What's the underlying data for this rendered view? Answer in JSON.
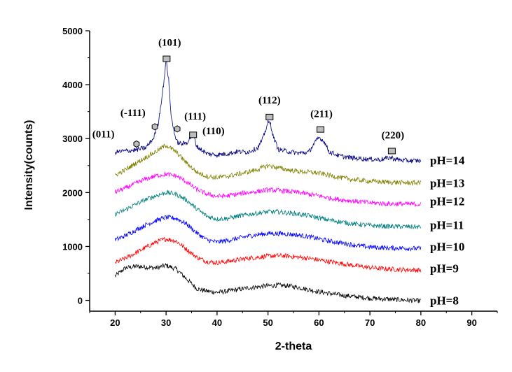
{
  "chart_data": {
    "type": "line",
    "xlabel": "2-theta",
    "ylabel": "Intensity(counts)",
    "xlim": [
      15,
      95
    ],
    "ylim": [
      -200,
      5000
    ],
    "x_ticks": [
      "20",
      "30",
      "40",
      "50",
      "60",
      "70",
      "80",
      "90"
    ],
    "y_ticks": [
      "0",
      "1000",
      "2000",
      "3000",
      "4000",
      "5000"
    ],
    "x_tick_values": [
      20,
      30,
      40,
      50,
      60,
      70,
      80,
      90
    ],
    "y_tick_values": [
      0,
      1000,
      2000,
      3000,
      4000,
      5000
    ],
    "x_range": [
      20,
      80
    ],
    "series": [
      {
        "name": "pH=8",
        "color": "#000000",
        "label_y": 0,
        "points": [
          [
            20,
            450
          ],
          [
            22,
            600
          ],
          [
            24,
            630
          ],
          [
            26,
            620
          ],
          [
            28,
            600
          ],
          [
            30,
            650
          ],
          [
            32,
            580
          ],
          [
            34,
            400
          ],
          [
            36,
            220
          ],
          [
            38,
            170
          ],
          [
            40,
            150
          ],
          [
            42,
            170
          ],
          [
            44,
            200
          ],
          [
            46,
            230
          ],
          [
            48,
            250
          ],
          [
            50,
            270
          ],
          [
            52,
            280
          ],
          [
            54,
            270
          ],
          [
            56,
            240
          ],
          [
            58,
            200
          ],
          [
            60,
            160
          ],
          [
            62,
            130
          ],
          [
            64,
            100
          ],
          [
            66,
            80
          ],
          [
            68,
            60
          ],
          [
            70,
            40
          ],
          [
            72,
            30
          ],
          [
            74,
            20
          ],
          [
            76,
            10
          ],
          [
            78,
            0
          ],
          [
            80,
            -10
          ]
        ]
      },
      {
        "name": "pH=9",
        "color": "#ff0000",
        "label_y": 600,
        "points": [
          [
            20,
            700
          ],
          [
            22,
            780
          ],
          [
            24,
            880
          ],
          [
            26,
            980
          ],
          [
            28,
            1080
          ],
          [
            30,
            1140
          ],
          [
            32,
            1100
          ],
          [
            34,
            950
          ],
          [
            36,
            800
          ],
          [
            38,
            720
          ],
          [
            40,
            700
          ],
          [
            42,
            720
          ],
          [
            44,
            750
          ],
          [
            46,
            780
          ],
          [
            48,
            800
          ],
          [
            50,
            820
          ],
          [
            52,
            830
          ],
          [
            54,
            820
          ],
          [
            56,
            800
          ],
          [
            58,
            780
          ],
          [
            60,
            750
          ],
          [
            62,
            720
          ],
          [
            64,
            690
          ],
          [
            66,
            660
          ],
          [
            68,
            630
          ],
          [
            70,
            610
          ],
          [
            72,
            590
          ],
          [
            74,
            580
          ],
          [
            76,
            570
          ],
          [
            78,
            565
          ],
          [
            80,
            560
          ]
        ]
      },
      {
        "name": "pH=10",
        "color": "#0000ff",
        "label_y": 1000,
        "points": [
          [
            20,
            1120
          ],
          [
            22,
            1200
          ],
          [
            24,
            1300
          ],
          [
            26,
            1400
          ],
          [
            28,
            1480
          ],
          [
            30,
            1540
          ],
          [
            32,
            1520
          ],
          [
            34,
            1420
          ],
          [
            36,
            1250
          ],
          [
            38,
            1120
          ],
          [
            40,
            1080
          ],
          [
            42,
            1110
          ],
          [
            44,
            1150
          ],
          [
            46,
            1190
          ],
          [
            48,
            1220
          ],
          [
            50,
            1240
          ],
          [
            52,
            1240
          ],
          [
            54,
            1230
          ],
          [
            56,
            1210
          ],
          [
            58,
            1180
          ],
          [
            60,
            1140
          ],
          [
            62,
            1100
          ],
          [
            64,
            1070
          ],
          [
            66,
            1040
          ],
          [
            68,
            1010
          ],
          [
            70,
            990
          ],
          [
            72,
            980
          ],
          [
            74,
            970
          ],
          [
            76,
            970
          ],
          [
            78,
            965
          ],
          [
            80,
            960
          ]
        ]
      },
      {
        "name": "pH=11",
        "color": "#008080",
        "label_y": 1400,
        "points": [
          [
            20,
            1600
          ],
          [
            22,
            1680
          ],
          [
            24,
            1780
          ],
          [
            26,
            1870
          ],
          [
            28,
            1940
          ],
          [
            30,
            2000
          ],
          [
            32,
            1970
          ],
          [
            34,
            1860
          ],
          [
            36,
            1700
          ],
          [
            38,
            1560
          ],
          [
            40,
            1510
          ],
          [
            42,
            1520
          ],
          [
            44,
            1560
          ],
          [
            46,
            1590
          ],
          [
            48,
            1620
          ],
          [
            50,
            1640
          ],
          [
            52,
            1640
          ],
          [
            54,
            1620
          ],
          [
            56,
            1600
          ],
          [
            58,
            1570
          ],
          [
            60,
            1530
          ],
          [
            62,
            1490
          ],
          [
            64,
            1460
          ],
          [
            66,
            1430
          ],
          [
            68,
            1410
          ],
          [
            70,
            1390
          ],
          [
            72,
            1380
          ],
          [
            74,
            1370
          ],
          [
            76,
            1370
          ],
          [
            78,
            1365
          ],
          [
            80,
            1360
          ]
        ]
      },
      {
        "name": "pH=12",
        "color": "#ff00ff",
        "label_y": 1840,
        "points": [
          [
            20,
            2010
          ],
          [
            22,
            2080
          ],
          [
            24,
            2170
          ],
          [
            26,
            2250
          ],
          [
            28,
            2310
          ],
          [
            30,
            2340
          ],
          [
            32,
            2310
          ],
          [
            34,
            2200
          ],
          [
            36,
            2060
          ],
          [
            38,
            1970
          ],
          [
            40,
            1930
          ],
          [
            42,
            1940
          ],
          [
            44,
            1970
          ],
          [
            46,
            2000
          ],
          [
            48,
            2020
          ],
          [
            50,
            2050
          ],
          [
            52,
            2040
          ],
          [
            54,
            2020
          ],
          [
            56,
            2000
          ],
          [
            58,
            1970
          ],
          [
            60,
            1940
          ],
          [
            62,
            1900
          ],
          [
            64,
            1870
          ],
          [
            66,
            1850
          ],
          [
            68,
            1830
          ],
          [
            70,
            1810
          ],
          [
            72,
            1800
          ],
          [
            74,
            1790
          ],
          [
            76,
            1790
          ],
          [
            78,
            1785
          ],
          [
            80,
            1780
          ]
        ]
      },
      {
        "name": "pH=13",
        "color": "#808000",
        "label_y": 2180,
        "points": [
          [
            20,
            2320
          ],
          [
            22,
            2420
          ],
          [
            24,
            2540
          ],
          [
            26,
            2650
          ],
          [
            28,
            2760
          ],
          [
            30,
            2880
          ],
          [
            32,
            2750
          ],
          [
            34,
            2550
          ],
          [
            36,
            2380
          ],
          [
            38,
            2300
          ],
          [
            40,
            2280
          ],
          [
            42,
            2300
          ],
          [
            44,
            2340
          ],
          [
            46,
            2380
          ],
          [
            48,
            2430
          ],
          [
            50,
            2500
          ],
          [
            52,
            2460
          ],
          [
            54,
            2420
          ],
          [
            56,
            2390
          ],
          [
            58,
            2380
          ],
          [
            60,
            2360
          ],
          [
            62,
            2320
          ],
          [
            64,
            2280
          ],
          [
            66,
            2250
          ],
          [
            68,
            2230
          ],
          [
            70,
            2210
          ],
          [
            72,
            2200
          ],
          [
            74,
            2190
          ],
          [
            76,
            2185
          ],
          [
            78,
            2180
          ],
          [
            80,
            2180
          ]
        ]
      },
      {
        "name": "pH=14",
        "color": "#000080",
        "label_y": 2600,
        "points": [
          [
            20,
            2750
          ],
          [
            22,
            2770
          ],
          [
            24,
            2790
          ],
          [
            26,
            2830
          ],
          [
            27.5,
            3000
          ],
          [
            28.5,
            3300
          ],
          [
            29.5,
            4000
          ],
          [
            30,
            4450
          ],
          [
            30.5,
            4100
          ],
          [
            31,
            3400
          ],
          [
            32,
            2950
          ],
          [
            33,
            2900
          ],
          [
            34,
            2920
          ],
          [
            35.3,
            3080
          ],
          [
            36,
            2860
          ],
          [
            38,
            2720
          ],
          [
            40,
            2700
          ],
          [
            42,
            2720
          ],
          [
            44,
            2760
          ],
          [
            46,
            2750
          ],
          [
            48,
            2830
          ],
          [
            49,
            3000
          ],
          [
            50,
            3300
          ],
          [
            50.5,
            3280
          ],
          [
            51,
            3050
          ],
          [
            52,
            2800
          ],
          [
            54,
            2760
          ],
          [
            56,
            2730
          ],
          [
            58,
            2750
          ],
          [
            59,
            2900
          ],
          [
            60,
            3020
          ],
          [
            61,
            2950
          ],
          [
            62,
            2760
          ],
          [
            64,
            2680
          ],
          [
            66,
            2650
          ],
          [
            68,
            2630
          ],
          [
            70,
            2620
          ],
          [
            72,
            2610
          ],
          [
            74,
            2650
          ],
          [
            75,
            2620
          ],
          [
            76,
            2600
          ],
          [
            78,
            2590
          ],
          [
            80,
            2590
          ]
        ]
      }
    ],
    "peaks": [
      {
        "label": "(011)",
        "x": 24.2,
        "y": 2900,
        "marker": "hexagon",
        "lx": 17.7,
        "ly": 3020
      },
      {
        "label": "(-111)",
        "x": 27.8,
        "y": 3220,
        "marker": "hexagon",
        "lx": 23.5,
        "ly": 3420
      },
      {
        "label": "(101)",
        "x": 30.1,
        "y": 4480,
        "marker": "square",
        "lx": 30.7,
        "ly": 4720
      },
      {
        "label": "(111)",
        "x": 32.2,
        "y": 3180,
        "marker": "hexagon",
        "lx": 35.7,
        "ly": 3350
      },
      {
        "label": "(110)",
        "x": 35.3,
        "y": 3070,
        "marker": "square",
        "lx": 39.3,
        "ly": 3080
      },
      {
        "label": "(112)",
        "x": 50.3,
        "y": 3400,
        "marker": "square",
        "lx": 50.3,
        "ly": 3650
      },
      {
        "label": "(211)",
        "x": 60.3,
        "y": 3170,
        "marker": "square",
        "lx": 60.5,
        "ly": 3400
      },
      {
        "label": "(220)",
        "x": 74.3,
        "y": 2770,
        "marker": "square",
        "lx": 74.5,
        "ly": 3000
      }
    ]
  }
}
